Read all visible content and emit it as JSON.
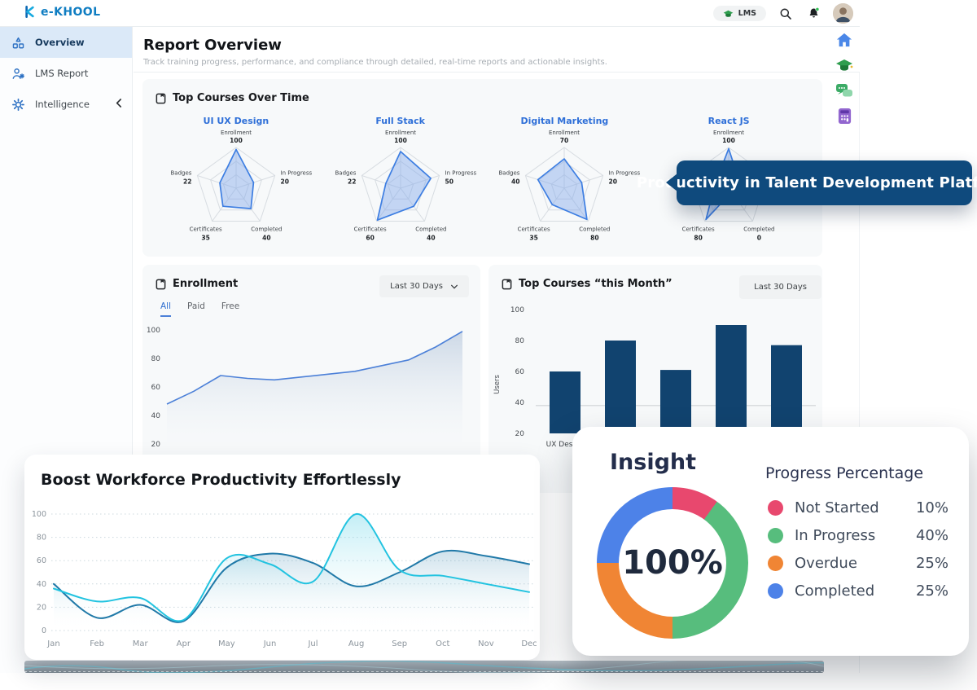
{
  "topbar": {
    "brand": "e-KHOOL",
    "lms_badge": "LMS"
  },
  "sidebar": {
    "items": [
      {
        "label": "Overview",
        "icon": "overview-icon",
        "active": true
      },
      {
        "label": "LMS Report",
        "icon": "lms-report-icon",
        "active": false
      },
      {
        "label": "Intelligence",
        "icon": "intelligence-icon",
        "active": false,
        "chevron": true
      }
    ]
  },
  "header": {
    "title": "Report Overview",
    "subtitle": "Track training progress, performance, and compliance through detailed, real-time reports and actionable insights."
  },
  "callout": {
    "text": "Productivity in Talent Development Platform",
    "bg": "#0f4a7d"
  },
  "radar_card": {
    "title": "Top Courses Over Time"
  },
  "enrollment_card": {
    "title": "Enrollment",
    "filter": "Last 30 Days",
    "tabs": [
      "All",
      "Paid",
      "Free"
    ],
    "active_tab": "All"
  },
  "top_courses_card": {
    "title": "Top Courses “this Month”",
    "filter": "Last 30 Days"
  },
  "boost_card": {
    "title": "Boost Workforce Productivity Effortlessly"
  },
  "insight_card": {
    "title": "Insight",
    "legend_title": "Progress Percentage",
    "center_label": "100%"
  },
  "colors": {
    "accent_blue": "#2e6fd8",
    "radar_line": "#3d7ee2",
    "bar_navy": "#11436f",
    "line_cyan": "#22c3e0",
    "line_teal": "#2079a8",
    "callout_navy": "#0f4a7d",
    "donut_red": "#e8486e",
    "donut_green": "#57bd7d",
    "donut_orange": "#f08534",
    "donut_blue": "#4d82e8"
  },
  "chart_data": [
    {
      "id": "radar-ui-ux",
      "type": "radar",
      "title": "UI UX Design",
      "axes": [
        "Enrollment",
        "In Progress",
        "Completed",
        "Certificates",
        "Badges"
      ],
      "values": [
        100,
        20,
        40,
        35,
        22
      ],
      "fractions": [
        0.95,
        0.45,
        0.62,
        0.55,
        0.42
      ]
    },
    {
      "id": "radar-full-stack",
      "type": "radar",
      "title": "Full Stack",
      "axes": [
        "Enrollment",
        "In Progress",
        "Completed",
        "Certificates",
        "Badges"
      ],
      "values": [
        100,
        50,
        40,
        60,
        22
      ],
      "fractions": [
        0.9,
        0.78,
        0.55,
        0.97,
        0.38
      ]
    },
    {
      "id": "radar-digital-marketing",
      "type": "radar",
      "title": "Digital Marketing",
      "axes": [
        "Enrollment",
        "In Progress",
        "Completed",
        "Certificates",
        "Badges"
      ],
      "values": [
        70,
        20,
        80,
        35,
        40
      ],
      "fractions": [
        0.72,
        0.45,
        0.95,
        0.5,
        0.68
      ]
    },
    {
      "id": "radar-react-js",
      "type": "radar",
      "title": "React JS",
      "axes": [
        "Enrollment",
        "In Progress",
        "Completed",
        "Certificates",
        "Badges"
      ],
      "values": [
        100,
        null,
        0,
        80,
        null
      ],
      "fractions": [
        0.97,
        0.3,
        0.12,
        0.95,
        0.35
      ]
    },
    {
      "id": "enrollment-line",
      "type": "area",
      "title": "Enrollment",
      "yticks": [
        100,
        80,
        60,
        40,
        20
      ],
      "values": [
        48,
        57,
        68,
        66,
        65,
        67,
        69,
        71,
        75,
        79,
        88,
        99
      ]
    },
    {
      "id": "top-courses-bar",
      "type": "bar",
      "ylabel": "Users",
      "yticks": [
        100,
        80,
        60,
        40,
        20
      ],
      "categories": [
        "UX Design",
        "",
        "",
        "",
        ""
      ],
      "values": [
        60,
        80,
        61,
        90,
        77
      ],
      "ref_line": 38
    },
    {
      "id": "boost-line",
      "type": "line",
      "categories": [
        "Jan",
        "Feb",
        "Mar",
        "Apr",
        "May",
        "Jun",
        "Jul",
        "Aug",
        "Sep",
        "Oct",
        "Nov",
        "Dec"
      ],
      "yticks": [
        0,
        20,
        40,
        60,
        80,
        100
      ],
      "series": [
        {
          "name": "series-cyan",
          "color": "#22c3e0",
          "values": [
            36,
            25,
            28,
            9,
            62,
            57,
            42,
            100,
            52,
            47,
            40,
            33
          ]
        },
        {
          "name": "series-teal",
          "color": "#2079a8",
          "values": [
            40,
            11,
            22,
            8,
            54,
            66,
            58,
            38,
            50,
            68,
            64,
            57
          ]
        }
      ]
    },
    {
      "id": "progress-donut",
      "type": "donut",
      "center": "100%",
      "segments": [
        {
          "label": "Not Started",
          "pct": 10,
          "color": "#e8486e"
        },
        {
          "label": "In Progress",
          "pct": 40,
          "color": "#57bd7d"
        },
        {
          "label": "Overdue",
          "pct": 25,
          "color": "#f08534"
        },
        {
          "label": "Completed",
          "pct": 25,
          "color": "#4d82e8"
        }
      ]
    }
  ]
}
